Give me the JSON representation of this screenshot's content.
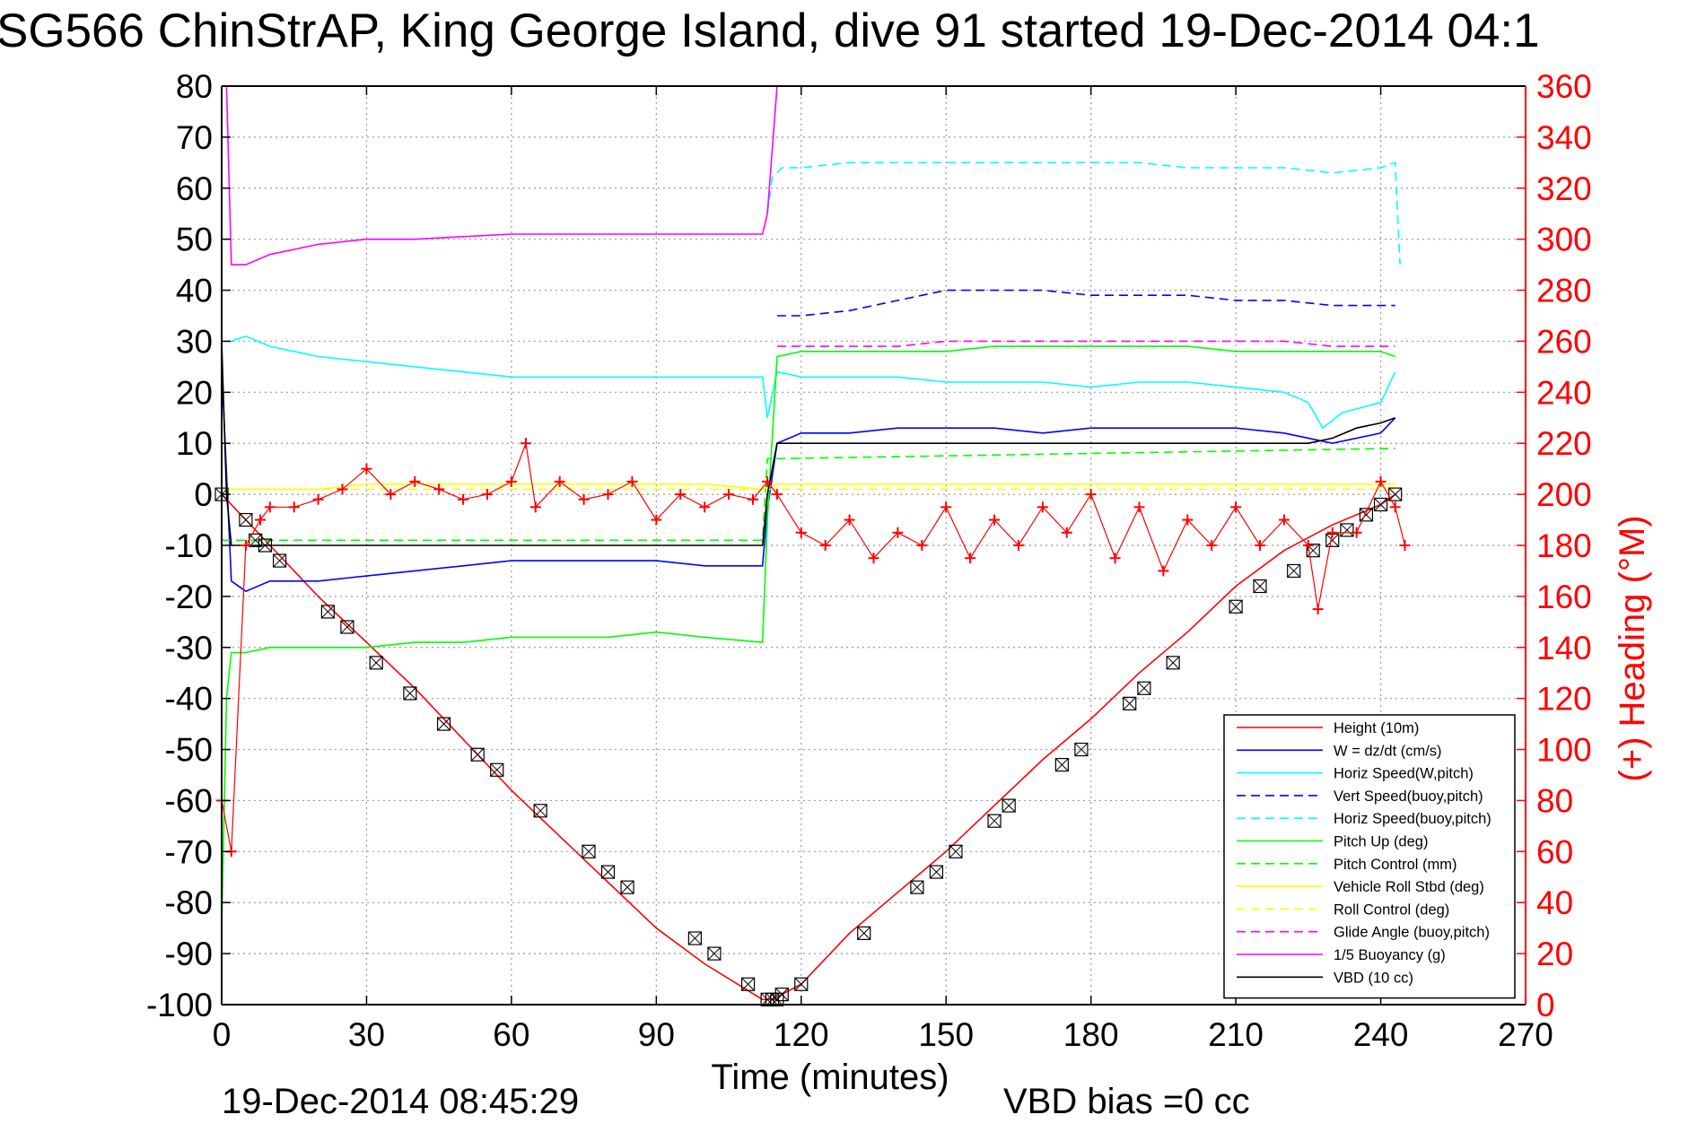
{
  "chart_data": {
    "type": "line",
    "title": "SG566 ChinStrAP, King George Island, dive 91 started 19-Dec-2014 04:1",
    "xlabel": "Time (minutes)",
    "ylabel": "",
    "y2label": "(+) Heading (°M)",
    "xlim": [
      0,
      270
    ],
    "ylim": [
      -100,
      80
    ],
    "y2lim": [
      0,
      360
    ],
    "xticks": [
      "0",
      "30",
      "60",
      "90",
      "120",
      "150",
      "180",
      "210",
      "240",
      "270"
    ],
    "yticks": [
      "80",
      "70",
      "60",
      "50",
      "40",
      "30",
      "20",
      "10",
      "0",
      "-10",
      "-20",
      "-30",
      "-40",
      "-50",
      "-60",
      "-70",
      "-80",
      "-90",
      "-100"
    ],
    "y2ticks": [
      "360",
      "340",
      "320",
      "300",
      "280",
      "260",
      "240",
      "220",
      "200",
      "180",
      "160",
      "140",
      "120",
      "100",
      "80",
      "60",
      "40",
      "20",
      "0"
    ],
    "grid": true,
    "legend_position": "lower-right",
    "footer_left": "19-Dec-2014 08:45:29",
    "footer_right": "VBD bias =0 cc",
    "colors": {
      "axis": "#000000",
      "grid": "#999999",
      "right_axis": "#ff0000"
    },
    "series": [
      {
        "name": "Height (10m)",
        "color": "#ff0000",
        "style": "solid",
        "axis": "left",
        "x": [
          0,
          10,
          20,
          30,
          40,
          50,
          60,
          70,
          80,
          90,
          100,
          112,
          114,
          116,
          120,
          130,
          140,
          150,
          160,
          170,
          180,
          190,
          200,
          210,
          220,
          230,
          240,
          243
        ],
        "y": [
          0,
          -10,
          -20,
          -29,
          -38,
          -48,
          -58,
          -67,
          -76,
          -85,
          -92,
          -99,
          -99,
          -98,
          -96,
          -86,
          -78,
          -70,
          -61,
          -52,
          -44,
          -35,
          -27,
          -18,
          -11,
          -6,
          -2,
          0
        ]
      },
      {
        "name": "W = dz/dt (cm/s)",
        "color": "#0000ff",
        "style": "solid",
        "axis": "left",
        "x": [
          0,
          2,
          5,
          10,
          20,
          30,
          40,
          50,
          60,
          70,
          80,
          90,
          100,
          112,
          113,
          115,
          120,
          130,
          140,
          150,
          160,
          170,
          180,
          190,
          200,
          210,
          220,
          230,
          240,
          243
        ],
        "y": [
          25,
          -17,
          -19,
          -17,
          -17,
          -16,
          -15,
          -14,
          -13,
          -13,
          -13,
          -13,
          -14,
          -14,
          -3,
          10,
          12,
          12,
          13,
          13,
          13,
          12,
          13,
          13,
          13,
          13,
          12,
          10,
          12,
          15
        ]
      },
      {
        "name": "Horiz Speed(W,pitch)",
        "color": "#00ffff",
        "style": "solid",
        "axis": "left",
        "x": [
          0,
          2,
          5,
          10,
          20,
          30,
          40,
          50,
          60,
          70,
          80,
          90,
          100,
          112,
          113,
          115,
          120,
          130,
          140,
          150,
          160,
          170,
          180,
          190,
          200,
          210,
          220,
          225,
          228,
          232,
          240,
          243
        ],
        "y": [
          30,
          30,
          31,
          29,
          27,
          26,
          25,
          24,
          23,
          23,
          23,
          23,
          23,
          23,
          15,
          24,
          23,
          23,
          23,
          22,
          22,
          22,
          21,
          22,
          22,
          21,
          20,
          18,
          13,
          16,
          18,
          24
        ]
      },
      {
        "name": "Vert Speed(buoy,pitch)",
        "color": "#0000ff",
        "style": "dashed",
        "axis": "left",
        "x": [
          115,
          120,
          130,
          140,
          150,
          160,
          170,
          180,
          190,
          200,
          210,
          220,
          230,
          240,
          243
        ],
        "y": [
          35,
          35,
          36,
          38,
          40,
          40,
          40,
          39,
          39,
          39,
          38,
          38,
          37,
          37,
          37
        ]
      },
      {
        "name": "Horiz Speed(buoy,pitch)",
        "color": "#00ffff",
        "style": "dashed",
        "axis": "left",
        "x": [
          113,
          114,
          116,
          120,
          130,
          140,
          150,
          160,
          170,
          180,
          190,
          200,
          210,
          220,
          230,
          240,
          243,
          244
        ],
        "y": [
          55,
          62,
          64,
          64,
          65,
          65,
          65,
          65,
          65,
          65,
          65,
          64,
          64,
          64,
          63,
          64,
          65,
          45
        ]
      },
      {
        "name": "Pitch Up (deg)",
        "color": "#00ff00",
        "style": "solid",
        "axis": "left",
        "x": [
          0,
          1,
          2,
          5,
          10,
          20,
          30,
          40,
          50,
          60,
          70,
          80,
          90,
          100,
          112,
          113,
          115,
          120,
          130,
          140,
          150,
          160,
          170,
          180,
          190,
          200,
          210,
          220,
          230,
          240,
          243
        ],
        "y": [
          -85,
          -40,
          -31,
          -31,
          -30,
          -30,
          -30,
          -29,
          -29,
          -28,
          -28,
          -28,
          -27,
          -28,
          -29,
          -5,
          27,
          28,
          28,
          28,
          28,
          29,
          29,
          29,
          29,
          29,
          28,
          28,
          28,
          28,
          27
        ]
      },
      {
        "name": "Pitch Control (mm)",
        "color": "#00ff00",
        "style": "dashed",
        "axis": "left",
        "x": [
          0,
          2,
          112,
          113,
          115,
          243
        ],
        "y": [
          -9,
          -9,
          -9,
          7,
          7,
          9
        ]
      },
      {
        "name": "Vehicle Roll Stbd (deg)",
        "color": "#ffff00",
        "style": "solid",
        "axis": "left",
        "x": [
          0,
          10,
          20,
          30,
          40,
          50,
          60,
          70,
          80,
          90,
          100,
          112,
          115,
          120,
          130,
          140,
          150,
          160,
          170,
          180,
          190,
          200,
          210,
          220,
          230,
          240,
          243
        ],
        "y": [
          1,
          1,
          1,
          2,
          2,
          2,
          2,
          2,
          2,
          2,
          2,
          1,
          2,
          2,
          2,
          2,
          2,
          2,
          2,
          2,
          2,
          2,
          2,
          2,
          2,
          2,
          2
        ]
      },
      {
        "name": "Roll Control (deg)",
        "color": "#ffff00",
        "style": "dashed",
        "axis": "left",
        "x": [
          0,
          10,
          20,
          50,
          80,
          112,
          115,
          150,
          180,
          210,
          240,
          243
        ],
        "y": [
          1,
          1,
          1,
          1,
          1,
          1,
          1,
          1,
          1,
          1,
          1,
          1
        ]
      },
      {
        "name": "Glide Angle (buoy,pitch)",
        "color": "#ff00ff",
        "style": "dashed",
        "axis": "left",
        "x": [
          115,
          120,
          130,
          140,
          150,
          160,
          170,
          180,
          190,
          200,
          210,
          220,
          230,
          240,
          243
        ],
        "y": [
          29,
          29,
          29,
          29,
          30,
          30,
          30,
          30,
          30,
          30,
          30,
          30,
          29,
          29,
          29
        ]
      },
      {
        "name": "1/5 Buoyancy (g)",
        "color": "#ff00ff",
        "style": "solid",
        "axis": "left",
        "x": [
          0,
          1,
          2,
          5,
          10,
          20,
          30,
          40,
          50,
          60,
          70,
          80,
          90,
          100,
          112,
          113,
          115
        ],
        "y": [
          80,
          80,
          45,
          45,
          47,
          49,
          50,
          50,
          50.5,
          51,
          51,
          51,
          51,
          51,
          51,
          55,
          80
        ]
      },
      {
        "name": "VBD (10 cc)",
        "color": "#000000",
        "style": "solid",
        "axis": "left",
        "x": [
          0,
          1,
          2,
          112,
          113,
          114,
          115,
          225,
          230,
          235,
          240,
          243
        ],
        "y": [
          30,
          0,
          -10,
          -10,
          0,
          5,
          10,
          10,
          11,
          13,
          14,
          15
        ]
      }
    ],
    "heading": {
      "name": "(+) Heading (°M)",
      "color": "#ff0000",
      "axis": "right",
      "x": [
        0,
        2,
        5,
        8,
        10,
        15,
        20,
        25,
        30,
        35,
        40,
        45,
        50,
        55,
        60,
        63,
        65,
        70,
        75,
        80,
        85,
        90,
        95,
        100,
        105,
        110,
        113,
        115,
        120,
        125,
        130,
        135,
        140,
        145,
        150,
        155,
        160,
        165,
        170,
        175,
        180,
        185,
        190,
        195,
        200,
        205,
        210,
        215,
        220,
        225,
        227,
        230,
        235,
        240,
        243,
        245
      ],
      "y": [
        80,
        60,
        180,
        190,
        195,
        195,
        198,
        202,
        210,
        200,
        205,
        202,
        198,
        200,
        205,
        220,
        195,
        205,
        198,
        200,
        205,
        190,
        200,
        195,
        200,
        198,
        205,
        200,
        185,
        180,
        190,
        175,
        185,
        180,
        195,
        175,
        190,
        180,
        195,
        185,
        200,
        175,
        195,
        170,
        190,
        180,
        195,
        180,
        190,
        180,
        155,
        185,
        185,
        205,
        195,
        180
      ]
    },
    "markers": {
      "name": "Height (10m) samples",
      "x": [
        0,
        5,
        7,
        9,
        12,
        22,
        26,
        32,
        39,
        46,
        53,
        57,
        66,
        76,
        80,
        84,
        98,
        102,
        109,
        113,
        114,
        115,
        116,
        120,
        133,
        144,
        148,
        152,
        160,
        163,
        174,
        178,
        188,
        191,
        197,
        210,
        215,
        222,
        226,
        230,
        233,
        237,
        240,
        243
      ],
      "y": [
        0,
        -5,
        -9,
        -10,
        -13,
        -23,
        -26,
        -33,
        -39,
        -45,
        -51,
        -54,
        -62,
        -70,
        -74,
        -77,
        -87,
        -90,
        -96,
        -99,
        -99,
        -99,
        -98,
        -96,
        -86,
        -77,
        -74,
        -70,
        -64,
        -61,
        -53,
        -50,
        -41,
        -38,
        -33,
        -22,
        -18,
        -15,
        -11,
        -9,
        -7,
        -4,
        -2,
        0
      ]
    }
  }
}
